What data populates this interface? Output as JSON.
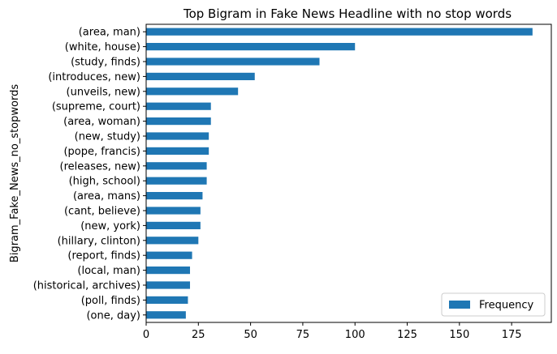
{
  "chart_data": {
    "type": "bar",
    "orientation": "horizontal",
    "title": "Top Bigram in Fake News Headline with no stop words",
    "xlabel": "",
    "ylabel": "Bigram_Fake_News_no_stopwords",
    "xlim": [
      0,
      194
    ],
    "xticks": [
      0,
      25,
      50,
      75,
      100,
      125,
      150,
      175
    ],
    "grid": false,
    "legend_position": "bottom-right",
    "bar_color": "#1f77b4",
    "categories": [
      "(area, man)",
      "(white, house)",
      "(study, finds)",
      "(introduces, new)",
      "(unveils, new)",
      "(supreme, court)",
      "(area, woman)",
      "(new, study)",
      "(pope, francis)",
      "(releases, new)",
      "(high, school)",
      "(area, mans)",
      "(cant, believe)",
      "(new, york)",
      "(hillary, clinton)",
      "(report, finds)",
      "(local, man)",
      "(historical, archives)",
      "(poll, finds)",
      "(one, day)"
    ],
    "series": [
      {
        "name": "Frequency",
        "values": [
          185,
          100,
          83,
          52,
          44,
          31,
          31,
          30,
          30,
          29,
          29,
          27,
          26,
          26,
          25,
          22,
          21,
          21,
          20,
          19
        ]
      }
    ]
  }
}
